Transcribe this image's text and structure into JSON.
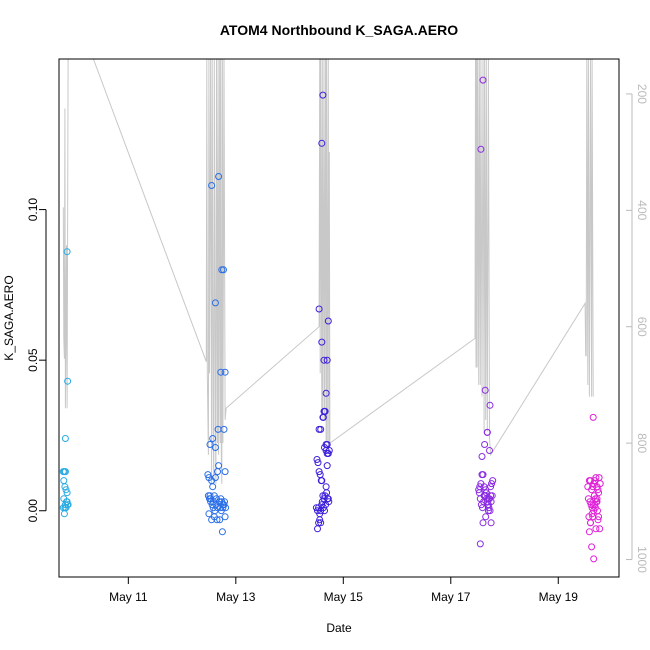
{
  "chart_data": {
    "type": "scatter",
    "title": "ATOM4 Northbound K_SAGA.AERO",
    "xlabel": "Date",
    "ylabel": "K_SAGA.AERO",
    "x_ticks": [
      {
        "label": "May 11",
        "day": 11
      },
      {
        "label": "May 13",
        "day": 13
      },
      {
        "label": "May 15",
        "day": 15
      },
      {
        "label": "May 17",
        "day": 17
      },
      {
        "label": "May 19",
        "day": 19
      }
    ],
    "xlim": [
      9.71,
      20.13
    ],
    "ylim": [
      -0.022,
      0.15
    ],
    "y_ticks": [
      0.0,
      0.05,
      0.1
    ],
    "y_tick_labels": [
      "0.00",
      "0.05",
      "0.10"
    ],
    "right_axis": {
      "label": "",
      "ticks": [
        200,
        400,
        600,
        800,
        1000
      ],
      "tick_labels": [
        "200",
        "400",
        "600",
        "800",
        "1000"
      ],
      "range_top_to_bottom": [
        140,
        1030
      ],
      "color": "#bbbbbb"
    },
    "colors": {
      "flight_1": "#29abe2",
      "flight_2": "#2a6fe8",
      "flight_3": "#3b1fdc",
      "flight_4": "#8a2be2",
      "flight_5": "#e020d8",
      "altitude_line": "#c8c8c8"
    },
    "series": [
      {
        "name": "flight_1",
        "color_key": "flight_1",
        "x": [
          9.79,
          9.81,
          9.8,
          9.82,
          9.83,
          9.84,
          9.86,
          9.8,
          9.82,
          9.85,
          9.88,
          9.79,
          9.83,
          9.86,
          9.81,
          9.84,
          9.87,
          9.83,
          9.86,
          9.87
        ],
        "y": [
          0.013,
          0.013,
          0.01,
          0.008,
          0.013,
          0.007,
          0.006,
          0.004,
          0.001,
          0.003,
          0.002,
          0.001,
          0.002,
          0.003,
          -0.001,
          0.001,
          0.002,
          0.024,
          0.086,
          0.043
        ]
      },
      {
        "name": "flight_2",
        "color_key": "flight_2",
        "x": [
          12.48,
          12.5,
          12.52,
          12.53,
          12.55,
          12.57,
          12.58,
          12.6,
          12.62,
          12.64,
          12.66,
          12.68,
          12.7,
          12.72,
          12.74,
          12.76,
          12.78,
          12.8,
          12.49,
          12.51,
          12.53,
          12.56,
          12.58,
          12.61,
          12.63,
          12.66,
          12.69,
          12.71,
          12.73,
          12.76,
          12.79,
          12.81,
          12.5,
          12.55,
          12.6,
          12.65,
          12.7,
          12.75,
          12.8,
          12.52,
          12.57,
          12.62,
          12.67,
          12.72,
          12.77,
          12.55,
          12.62,
          12.68,
          12.74,
          12.8,
          12.78
        ],
        "y": [
          0.012,
          0.011,
          0.005,
          0.004,
          0.01,
          0.008,
          0.003,
          0.005,
          0.011,
          0.004,
          0.013,
          0.015,
          0.003,
          0.004,
          0.003,
          0.002,
          0.002,
          0.013,
          0.005,
          0.004,
          0.003,
          0.002,
          0.001,
          0.0,
          0.002,
          0.001,
          0.003,
          0.001,
          0.0,
          0.001,
          0.003,
          0.001,
          -0.001,
          -0.003,
          -0.002,
          -0.003,
          -0.003,
          -0.007,
          -0.002,
          0.022,
          0.024,
          0.021,
          0.027,
          0.046,
          0.08,
          0.108,
          0.069,
          0.111,
          0.08,
          0.046,
          0.027
        ],
        "y_note": "approximate"
      },
      {
        "name": "flight_3",
        "color_key": "flight_3",
        "x": [
          14.5,
          14.52,
          14.54,
          14.56,
          14.58,
          14.6,
          14.62,
          14.64,
          14.66,
          14.68,
          14.7,
          14.72,
          14.74,
          14.51,
          14.53,
          14.55,
          14.57,
          14.59,
          14.61,
          14.63,
          14.65,
          14.67,
          14.69,
          14.71,
          14.73,
          14.52,
          14.54,
          14.56,
          14.58,
          14.6,
          14.62,
          14.64,
          14.66,
          14.68,
          14.7,
          14.72,
          14.55,
          14.6,
          14.65,
          14.7,
          14.58,
          14.63,
          14.68,
          14.6,
          14.62,
          14.64,
          14.66,
          14.68,
          14.7,
          14.72,
          14.55
        ],
        "y": [
          0.001,
          0.0,
          0.001,
          -0.001,
          0.0,
          0.002,
          0.005,
          0.004,
          0.005,
          0.008,
          0.015,
          0.019,
          0.02,
          0.017,
          0.016,
          0.013,
          0.012,
          0.01,
          0.003,
          0.001,
          0.0,
          0.002,
          0.006,
          0.004,
          0.003,
          -0.006,
          -0.004,
          -0.003,
          -0.004,
          0.01,
          0.031,
          0.033,
          0.033,
          0.039,
          0.05,
          0.063,
          0.067,
          0.056,
          0.021,
          0.022,
          0.027,
          0.031,
          0.02,
          0.122,
          0.138,
          0.05,
          0.033,
          0.022,
          0.019,
          0.004,
          0.027
        ],
        "y_note": "approximate"
      },
      {
        "name": "flight_4",
        "color_key": "flight_4",
        "x": [
          17.52,
          17.54,
          17.56,
          17.58,
          17.6,
          17.62,
          17.64,
          17.66,
          17.68,
          17.7,
          17.72,
          17.74,
          17.76,
          17.78,
          17.53,
          17.55,
          17.57,
          17.59,
          17.61,
          17.63,
          17.65,
          17.67,
          17.69,
          17.71,
          17.73,
          17.75,
          17.77,
          17.55,
          17.6,
          17.65,
          17.7,
          17.75,
          17.58,
          17.63,
          17.68,
          17.73,
          17.56,
          17.6,
          17.64,
          17.68,
          17.72,
          17.62,
          17.66,
          17.7,
          17.74
        ],
        "y": [
          0.007,
          0.008,
          0.009,
          0.012,
          0.012,
          0.005,
          0.005,
          0.006,
          0.003,
          0.002,
          0.004,
          0.008,
          0.009,
          0.01,
          0.006,
          0.004,
          0.002,
          0.001,
          0.003,
          0.005,
          0.007,
          0.004,
          0.002,
          0.001,
          0.0,
          0.003,
          0.005,
          -0.011,
          -0.004,
          -0.002,
          0.0,
          -0.004,
          0.018,
          0.022,
          0.026,
          0.035,
          0.12,
          0.143,
          0.04,
          0.026,
          0.02,
          0.008,
          0.006,
          0.004,
          0.005
        ],
        "y_note": "approximate"
      },
      {
        "name": "flight_5",
        "color_key": "flight_5",
        "x": [
          19.55,
          19.58,
          19.6,
          19.62,
          19.64,
          19.66,
          19.68,
          19.7,
          19.72,
          19.74,
          19.76,
          19.78,
          19.56,
          19.59,
          19.61,
          19.63,
          19.65,
          19.67,
          19.69,
          19.71,
          19.73,
          19.75,
          19.77,
          19.57,
          19.6,
          19.63,
          19.66,
          19.69,
          19.72,
          19.75,
          19.58,
          19.62,
          19.66,
          19.7,
          19.74,
          19.6,
          19.64,
          19.68,
          19.72,
          19.65
        ],
        "y": [
          0.008,
          0.01,
          0.01,
          0.007,
          0.008,
          0.009,
          0.01,
          0.011,
          0.008,
          0.007,
          0.011,
          0.009,
          0.004,
          0.003,
          0.002,
          0.001,
          0.002,
          0.005,
          0.004,
          0.003,
          0.0,
          -0.002,
          -0.006,
          -0.002,
          -0.004,
          -0.001,
          0.0,
          0.001,
          0.003,
          0.006,
          -0.007,
          -0.012,
          -0.016,
          -0.006,
          -0.003,
          -0.004,
          -0.002,
          0.002,
          0.004,
          0.031
        ],
        "y_note": "approximate"
      }
    ],
    "altitude_line": {
      "axis": "right",
      "points": [
        [
          9.79,
          395
        ],
        [
          9.8,
          620
        ],
        [
          9.81,
          655
        ],
        [
          9.82,
          225
        ],
        [
          9.83,
          740
        ],
        [
          9.85,
          460
        ],
        [
          9.86,
          740
        ],
        [
          9.88,
          140
        ],
        [
          9.9,
          140
        ],
        [
          10.35,
          140
        ],
        [
          12.45,
          660
        ],
        [
          12.46,
          140
        ],
        [
          12.47,
          680
        ],
        [
          12.49,
          820
        ],
        [
          12.5,
          140
        ],
        [
          12.51,
          680
        ],
        [
          12.53,
          140
        ],
        [
          12.55,
          870
        ],
        [
          12.56,
          140
        ],
        [
          12.58,
          770
        ],
        [
          12.59,
          870
        ],
        [
          12.6,
          140
        ],
        [
          12.62,
          770
        ],
        [
          12.63,
          870
        ],
        [
          12.64,
          140
        ],
        [
          12.66,
          800
        ],
        [
          12.67,
          140
        ],
        [
          12.68,
          820
        ],
        [
          12.7,
          140
        ],
        [
          12.71,
          800
        ],
        [
          12.72,
          140
        ],
        [
          12.73,
          820
        ],
        [
          12.74,
          870
        ],
        [
          12.75,
          140
        ],
        [
          12.76,
          800
        ],
        [
          12.78,
          140
        ],
        [
          12.8,
          760
        ],
        [
          12.82,
          740
        ],
        [
          14.55,
          600
        ],
        [
          14.56,
          140
        ],
        [
          14.57,
          680
        ],
        [
          14.58,
          140
        ],
        [
          14.6,
          740
        ],
        [
          14.61,
          140
        ],
        [
          14.62,
          760
        ],
        [
          14.64,
          140
        ],
        [
          14.65,
          760
        ],
        [
          14.67,
          140
        ],
        [
          14.68,
          800
        ],
        [
          14.69,
          140
        ],
        [
          14.7,
          800
        ],
        [
          14.72,
          140
        ],
        [
          14.73,
          800
        ],
        [
          14.74,
          300
        ],
        [
          14.75,
          800
        ],
        [
          17.45,
          620
        ],
        [
          17.46,
          140
        ],
        [
          17.47,
          670
        ],
        [
          17.48,
          140
        ],
        [
          17.49,
          670
        ],
        [
          17.5,
          140
        ],
        [
          17.52,
          700
        ],
        [
          17.53,
          140
        ],
        [
          17.55,
          700
        ],
        [
          17.56,
          140
        ],
        [
          17.58,
          720
        ],
        [
          17.6,
          140
        ],
        [
          17.62,
          780
        ],
        [
          17.63,
          140
        ],
        [
          17.65,
          760
        ],
        [
          17.66,
          140
        ],
        [
          17.68,
          780
        ],
        [
          17.7,
          140
        ],
        [
          17.72,
          790
        ],
        [
          17.74,
          820
        ],
        [
          19.5,
          560
        ],
        [
          19.51,
          650
        ],
        [
          19.52,
          650
        ],
        [
          19.53,
          140
        ],
        [
          19.55,
          700
        ],
        [
          19.56,
          140
        ],
        [
          19.58,
          720
        ],
        [
          19.6,
          140
        ],
        [
          19.62,
          720
        ],
        [
          19.63,
          140
        ],
        [
          19.65,
          720
        ]
      ]
    },
    "grid": false,
    "legend": "none"
  }
}
